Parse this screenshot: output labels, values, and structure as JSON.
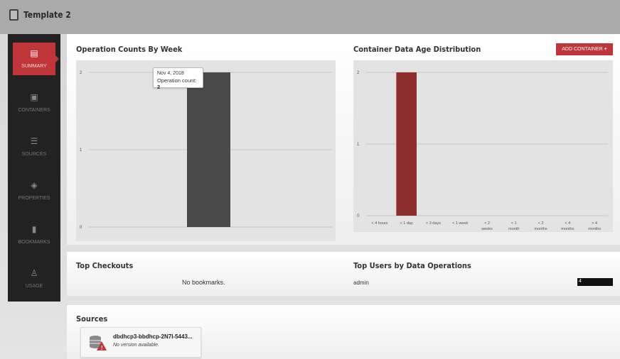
{
  "header": {
    "title": "Template 2",
    "icon": "document-icon"
  },
  "sidebar": {
    "items": [
      {
        "label": "SUMMARY",
        "icon": "document-icon",
        "active": true
      },
      {
        "label": "CONTAINERS",
        "icon": "container-icon"
      },
      {
        "label": "SOURCES",
        "icon": "database-icon"
      },
      {
        "label": "PROPERTIES",
        "icon": "layers-icon"
      },
      {
        "label": "BOOKMARKS",
        "icon": "bookmark-icon"
      },
      {
        "label": "USAGE",
        "icon": "flask-icon"
      }
    ]
  },
  "accent": "#c0353a",
  "op_chart": {
    "title": "Operation Counts By Week",
    "tooltip": {
      "date": "Nov 4, 2018",
      "label": "Operation count:",
      "value": "2"
    }
  },
  "age_chart": {
    "title": "Container Data Age Distribution",
    "add_button": "ADD CONTAINER"
  },
  "chart_data": [
    {
      "type": "bar",
      "title": "Operation Counts By Week",
      "categories": [
        "Nov 4, 2018"
      ],
      "values": [
        2
      ],
      "yticks": [
        "0",
        "1",
        "2"
      ],
      "ylim": [
        0,
        2
      ],
      "grid": true,
      "color": "#4a4a4a"
    },
    {
      "type": "bar",
      "title": "Container Data Age Distribution",
      "categories": [
        "< 4 hours",
        "< 1 day",
        "< 3 days",
        "< 1 week",
        "< 2 weeks",
        "< 1 month",
        "< 2 months",
        "< 4 months",
        "> 4 months"
      ],
      "values": [
        0,
        2,
        0,
        0,
        0,
        0,
        0,
        0,
        0
      ],
      "yticks": [
        "0",
        "1",
        "2"
      ],
      "ylim": [
        0,
        2
      ],
      "grid": true,
      "color": "#8e2f2f"
    }
  ],
  "checkouts": {
    "title": "Top Checkouts",
    "empty": "No bookmarks."
  },
  "top_users": {
    "title": "Top Users by Data Operations",
    "rows": [
      {
        "user": "admin",
        "count": "4"
      }
    ]
  },
  "sources": {
    "title": "Sources",
    "items": [
      {
        "name": "dbdhcp3-bbdhcp-2N7I-5443...",
        "status": "No version available."
      }
    ]
  }
}
